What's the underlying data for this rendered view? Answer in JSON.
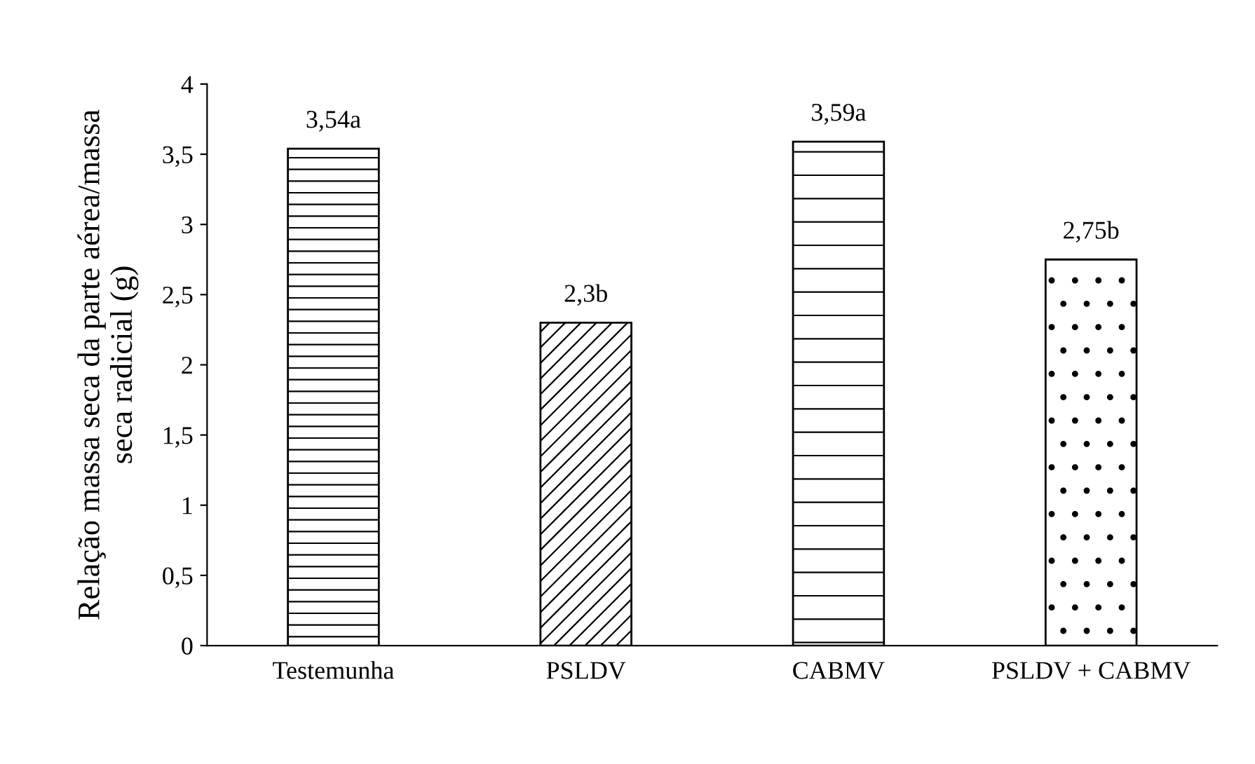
{
  "chart_data": {
    "type": "bar",
    "ylabel": "Relação massa seca da parte aérea/massa\nseca radicial (g)",
    "categories": [
      "Testemunha",
      "PSLDV",
      "CABMV",
      "PSLDV + CABMV"
    ],
    "values": [
      3.54,
      2.3,
      3.59,
      2.75
    ],
    "value_labels": [
      "3,54a",
      "2,3b",
      "3,59a",
      "2,75b"
    ],
    "ylim": [
      0,
      4
    ],
    "yticks": [
      0,
      {
        "value": 0.5,
        "label": "0,5"
      },
      1,
      {
        "value": 1.5,
        "label": "1,5"
      },
      2,
      {
        "value": 2.5,
        "label": "2,5"
      },
      3,
      {
        "value": 3.5,
        "label": "3,5"
      },
      4
    ],
    "grid": false,
    "legend": false
  }
}
